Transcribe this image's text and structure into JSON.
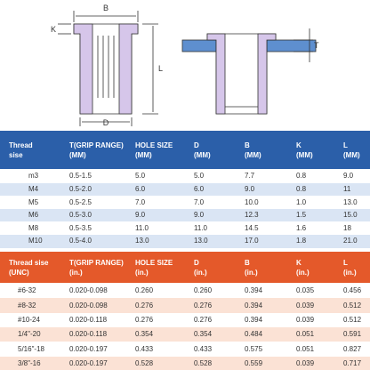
{
  "diagram_labels": {
    "b": "B",
    "k": "K",
    "l": "L",
    "d": "D",
    "t": "T"
  },
  "metric_table": {
    "header": [
      [
        "Thread",
        "sise"
      ],
      [
        "T(GRIP RANGE)",
        "(MM)"
      ],
      [
        "HOLE SIZE",
        "(MM)"
      ],
      [
        "D",
        "(MM)"
      ],
      [
        "B",
        "(MM)"
      ],
      [
        "K",
        "(MM)"
      ],
      [
        "L",
        "(MM)"
      ]
    ],
    "rows": [
      [
        "m3",
        "0.5-1.5",
        "5.0",
        "5.0",
        "7.7",
        "0.8",
        "9.0"
      ],
      [
        "M4",
        "0.5-2.0",
        "6.0",
        "6.0",
        "9.0",
        "0.8",
        "11"
      ],
      [
        "M5",
        "0.5-2.5",
        "7.0",
        "7.0",
        "10.0",
        "1.0",
        "13.0"
      ],
      [
        "M6",
        "0.5-3.0",
        "9.0",
        "9.0",
        "12.3",
        "1.5",
        "15.0"
      ],
      [
        "M8",
        "0.5-3.5",
        "11.0",
        "11.0",
        "14.5",
        "1.6",
        "18"
      ],
      [
        "M10",
        "0.5-4.0",
        "13.0",
        "13.0",
        "17.0",
        "1.8",
        "21.0"
      ]
    ]
  },
  "imperial_table": {
    "header": [
      [
        "Thread sise",
        "(UNC)"
      ],
      [
        "T(GRIP RANGE)",
        "(in.)"
      ],
      [
        "HOLE SIZE",
        "(in.)"
      ],
      [
        "D",
        "(in.)"
      ],
      [
        "B",
        "(in.)"
      ],
      [
        "K",
        "(in.)"
      ],
      [
        "L",
        "(in.)"
      ]
    ],
    "rows": [
      [
        "#6-32",
        "0.020-0.098",
        "0.260",
        "0.260",
        "0.394",
        "0.035",
        "0.456"
      ],
      [
        "#8-32",
        "0.020-0.098",
        "0.276",
        "0.276",
        "0.394",
        "0.039",
        "0.512"
      ],
      [
        "#10-24",
        "0.020-0.118",
        "0.276",
        "0.276",
        "0.394",
        "0.039",
        "0.512"
      ],
      [
        "1/4\"-20",
        "0.020-0.118",
        "0.354",
        "0.354",
        "0.484",
        "0.051",
        "0.591"
      ],
      [
        "5/16\"-18",
        "0.020-0.197",
        "0.433",
        "0.433",
        "0.575",
        "0.051",
        "0.827"
      ],
      [
        "3/8\"-16",
        "0.020-0.197",
        "0.528",
        "0.528",
        "0.559",
        "0.039",
        "0.717"
      ]
    ]
  }
}
